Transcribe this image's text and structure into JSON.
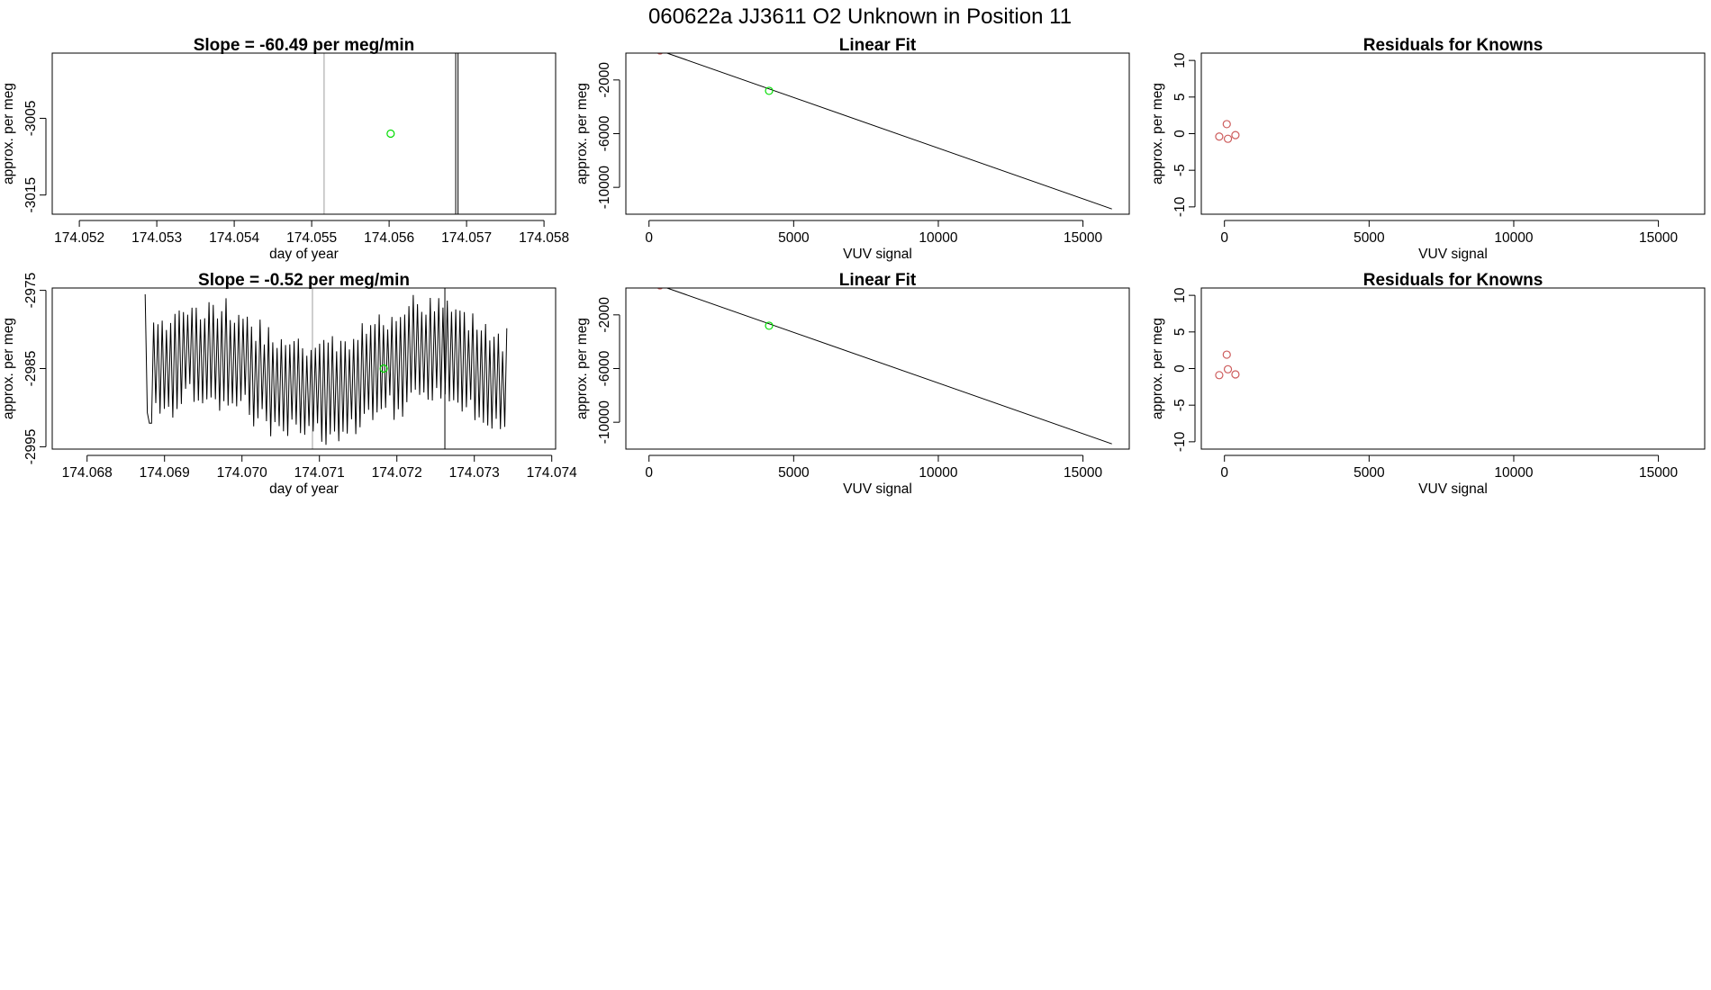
{
  "figure": {
    "title": "060622a      JJ3611    O2 Unknown in Position  11"
  },
  "colors": {
    "axis": "#000000",
    "line": "#000000",
    "vline": "#bebebe",
    "unknown_point": "#00dd00",
    "known_point": "#cd5c5c"
  },
  "chart_data": [
    {
      "id": "ts1",
      "type": "line",
      "title": "Slope =  -60.49  per meg/min",
      "xlabel": "day of year",
      "ylabel": "approx. per meg",
      "xlim": [
        174.05165,
        174.05815
      ],
      "ylim": [
        -3017.5,
        -2996.5
      ],
      "xticks": [
        174.052,
        174.053,
        174.054,
        174.055,
        174.056,
        174.057,
        174.058
      ],
      "xtick_labels": [
        "174.052",
        "174.053",
        "174.054",
        "174.055",
        "174.056",
        "174.057",
        "174.058"
      ],
      "yticks": [
        -3015,
        -3005
      ],
      "ytick_labels": [
        "-3015",
        "-3005"
      ],
      "gray_vlines": [
        174.05516
      ],
      "black_vlines": [
        174.05686,
        174.05689
      ],
      "points": [
        {
          "x": 174.05602,
          "y": -3007.0,
          "role": "unknown"
        }
      ]
    },
    {
      "id": "fit1",
      "type": "line",
      "title": "Linear Fit",
      "xlabel": "VUV signal",
      "ylabel": "approx. per meg",
      "xlim": [
        -800,
        16600
      ],
      "ylim": [
        -12000,
        0
      ],
      "xticks": [
        0,
        5000,
        10000,
        15000
      ],
      "xtick_labels": [
        "0",
        "5000",
        "10000",
        "15000"
      ],
      "yticks": [
        -10000,
        -6000,
        -2000
      ],
      "ytick_labels": [
        "-10000",
        "-6000",
        "-2000"
      ],
      "fit_line": {
        "x": [
          -200,
          16000
        ],
        "y": [
          620,
          -11610
        ]
      },
      "known_points": [
        {
          "x": -180,
          "y": 620
        },
        {
          "x": 120,
          "y": 400
        },
        {
          "x": 380,
          "y": 200
        }
      ],
      "unknown_points": [
        {
          "x": 4150,
          "y": -2810
        }
      ]
    },
    {
      "id": "res1",
      "type": "scatter",
      "title": "Residuals for Knowns",
      "xlabel": "VUV signal",
      "ylabel": "approx. per meg",
      "xlim": [
        -800,
        16600
      ],
      "ylim": [
        -11,
        11
      ],
      "xticks": [
        0,
        5000,
        10000,
        15000
      ],
      "xtick_labels": [
        "0",
        "5000",
        "10000",
        "15000"
      ],
      "yticks": [
        -10,
        -5,
        0,
        5,
        10
      ],
      "ytick_labels": [
        "-10",
        "-5",
        "0",
        "5",
        "10"
      ],
      "known_points": [
        {
          "x": -180,
          "y": -0.4
        },
        {
          "x": 80,
          "y": 1.3
        },
        {
          "x": 120,
          "y": -0.7
        },
        {
          "x": 380,
          "y": -0.2
        }
      ]
    },
    {
      "id": "ts2",
      "type": "line",
      "title": "Slope =  -0.52  per meg/min",
      "xlabel": "day of year",
      "ylabel": "approx. per meg",
      "xlim": [
        174.06755,
        174.07405
      ],
      "ylim": [
        -2995.3,
        -2974.7
      ],
      "xticks": [
        174.068,
        174.069,
        174.07,
        174.071,
        174.072,
        174.073,
        174.074
      ],
      "xtick_labels": [
        "174.068",
        "174.069",
        "174.070",
        "174.071",
        "174.072",
        "174.073",
        "174.074"
      ],
      "yticks": [
        -2995,
        -2985,
        -2975
      ],
      "ytick_labels": [
        "-2995",
        "-2985",
        "-2975"
      ],
      "gray_vlines": [
        174.07091
      ],
      "black_vlines": [
        174.07262
      ],
      "trace_range": [
        174.06875,
        174.07342
      ],
      "points": [
        {
          "x": 174.07183,
          "y": -2985.0,
          "role": "unknown"
        }
      ]
    },
    {
      "id": "fit2",
      "type": "line",
      "title": "Linear Fit",
      "xlabel": "VUV signal",
      "ylabel": "approx. per meg",
      "xlim": [
        -800,
        16600
      ],
      "ylim": [
        -12000,
        0
      ],
      "xticks": [
        0,
        5000,
        10000,
        15000
      ],
      "xtick_labels": [
        "0",
        "5000",
        "10000",
        "15000"
      ],
      "yticks": [
        -10000,
        -6000,
        -2000
      ],
      "ytick_labels": [
        "-10000",
        "-6000",
        "-2000"
      ],
      "fit_line": {
        "x": [
          -200,
          16000
        ],
        "y": [
          620,
          -11610
        ]
      },
      "known_points": [
        {
          "x": -180,
          "y": 620
        },
        {
          "x": 120,
          "y": 400
        },
        {
          "x": 380,
          "y": 200
        }
      ],
      "unknown_points": [
        {
          "x": 4150,
          "y": -2810
        }
      ]
    },
    {
      "id": "res2",
      "type": "scatter",
      "title": "Residuals for Knowns",
      "xlabel": "VUV signal",
      "ylabel": "approx. per meg",
      "xlim": [
        -800,
        16600
      ],
      "ylim": [
        -11,
        11
      ],
      "xticks": [
        0,
        5000,
        10000,
        15000
      ],
      "xtick_labels": [
        "0",
        "5000",
        "10000",
        "15000"
      ],
      "yticks": [
        -10,
        -5,
        0,
        5,
        10
      ],
      "ytick_labels": [
        "-10",
        "-5",
        "0",
        "5",
        "10"
      ],
      "known_points": [
        {
          "x": -180,
          "y": -0.9
        },
        {
          "x": 80,
          "y": 1.9
        },
        {
          "x": 120,
          "y": -0.1
        },
        {
          "x": 380,
          "y": -0.8
        }
      ]
    }
  ]
}
